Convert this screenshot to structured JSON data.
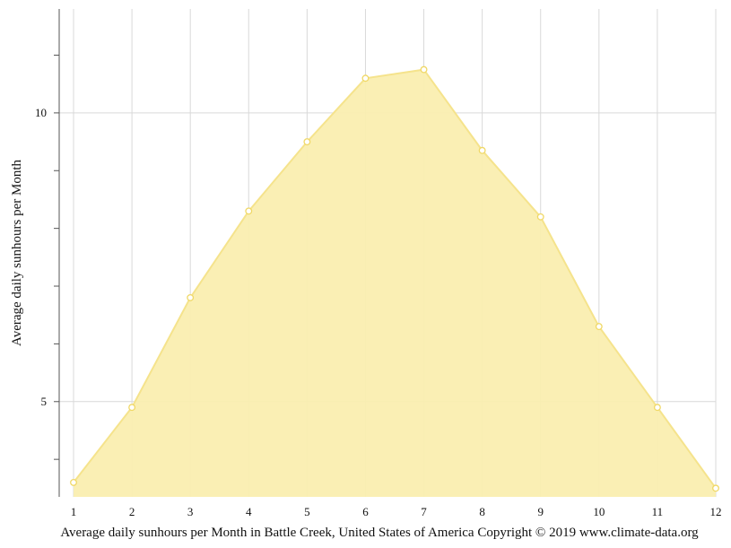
{
  "chart_data": {
    "type": "area",
    "x": [
      1,
      2,
      3,
      4,
      5,
      6,
      7,
      8,
      9,
      10,
      11,
      12
    ],
    "series": [
      {
        "values": [
          3.6,
          4.9,
          6.8,
          8.3,
          9.5,
          10.6,
          10.75,
          9.35,
          8.2,
          6.3,
          4.9,
          3.5
        ]
      }
    ],
    "ylabel": "Average daily sunhours per Month",
    "xticks": [
      "1",
      "2",
      "3",
      "4",
      "5",
      "6",
      "7",
      "8",
      "9",
      "10",
      "11",
      "12"
    ],
    "yticks": [
      5,
      10
    ],
    "yticks_labels": [
      "5",
      "10"
    ],
    "yminor": [
      4,
      6,
      7,
      8,
      9,
      11
    ],
    "ylim": [
      3.35,
      11.8
    ],
    "xlim": [
      1,
      12
    ],
    "grid": true,
    "colors": {
      "fill": "#faeeb0",
      "line": "#f5e38c",
      "marker": "#f0d866",
      "grid": "#d9d9d9",
      "axis": "#555555"
    }
  },
  "caption": "Average daily sunhours per Month in Battle Creek, United States of America Copyright © 2019 www.climate-data.org"
}
